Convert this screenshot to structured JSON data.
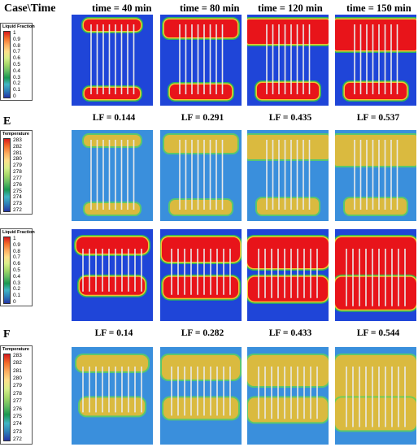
{
  "header": {
    "case_time": "Case\\Time",
    "times": [
      "time = 40 min",
      "time = 80 min",
      "time = 120 min",
      "time = 150 min"
    ]
  },
  "case_labels": [
    "E",
    "F"
  ],
  "colorbars": {
    "liquid_fraction": {
      "title": "Liquid Fraction",
      "ticks": [
        "1",
        "0.9",
        "0.8",
        "0.7",
        "0.6",
        "0.5",
        "0.4",
        "0.3",
        "0.2",
        "0.1",
        "0"
      ]
    },
    "temperature": {
      "title": "Temperature",
      "ticks": [
        "283",
        "282",
        "281",
        "280",
        "279",
        "278",
        "277",
        "276",
        "275",
        "274",
        "273",
        "272"
      ]
    }
  },
  "lf_values": {
    "case_e": [
      "LF = 0.144",
      "LF = 0.291",
      "LF = 0.435",
      "LF = 0.537"
    ],
    "case_f": [
      "LF = 0.14",
      "LF = 0.282",
      "LF = 0.433",
      "LF = 0.544"
    ]
  },
  "colors": {
    "solid": "#1f45d8",
    "liquid": "#e8141a",
    "mushy_outer": "#2ec24a",
    "mushy_inner": "#f2c230",
    "temp_bg": "#3a8fdc",
    "temp_warm": "#e8b83a",
    "temp_green": "#5fd15a"
  }
}
